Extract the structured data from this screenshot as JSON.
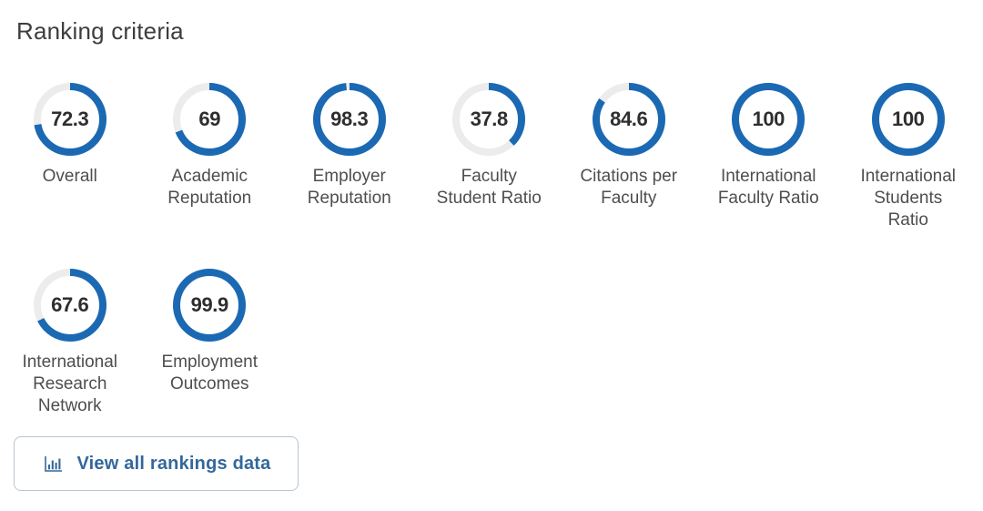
{
  "section": {
    "title": "Ranking criteria"
  },
  "colors": {
    "ring_fill": "#1b69b3",
    "ring_track": "#ececec",
    "value_text": "#2e2e2e",
    "label_text": "#4e4e4e",
    "title_text": "#3d3d3d",
    "button_text": "#33689b",
    "button_border": "#b9c5d1"
  },
  "chart_data": {
    "type": "donut-gauges",
    "max": 100,
    "rows": [
      [
        {
          "value": 72.3,
          "display": "72.3",
          "label": "Overall",
          "lines": [
            "Overall"
          ]
        },
        {
          "value": 69,
          "display": "69",
          "label": "Academic Reputation",
          "lines": [
            "Academic",
            "Reputation"
          ]
        },
        {
          "value": 98.3,
          "display": "98.3",
          "label": "Employer Reputation",
          "lines": [
            "Employer",
            "Reputation"
          ]
        },
        {
          "value": 37.8,
          "display": "37.8",
          "label": "Faculty Student Ratio",
          "lines": [
            "Faculty",
            "Student Ratio"
          ]
        },
        {
          "value": 84.6,
          "display": "84.6",
          "label": "Citations per Faculty",
          "lines": [
            "Citations per",
            "Faculty"
          ]
        },
        {
          "value": 100,
          "display": "100",
          "label": "International Faculty Ratio",
          "lines": [
            "International",
            "Faculty Ratio"
          ]
        },
        {
          "value": 100,
          "display": "100",
          "label": "International Students Ratio",
          "lines": [
            "International",
            "Students",
            "Ratio"
          ]
        }
      ],
      [
        {
          "value": 67.6,
          "display": "67.6",
          "label": "International Research Network",
          "lines": [
            "International",
            "Research",
            "Network"
          ]
        },
        {
          "value": 99.9,
          "display": "99.9",
          "label": "Employment Outcomes",
          "lines": [
            "Employment",
            "Outcomes"
          ]
        }
      ]
    ]
  },
  "button": {
    "label": "View all rankings data",
    "icon": "bar-chart-icon"
  }
}
